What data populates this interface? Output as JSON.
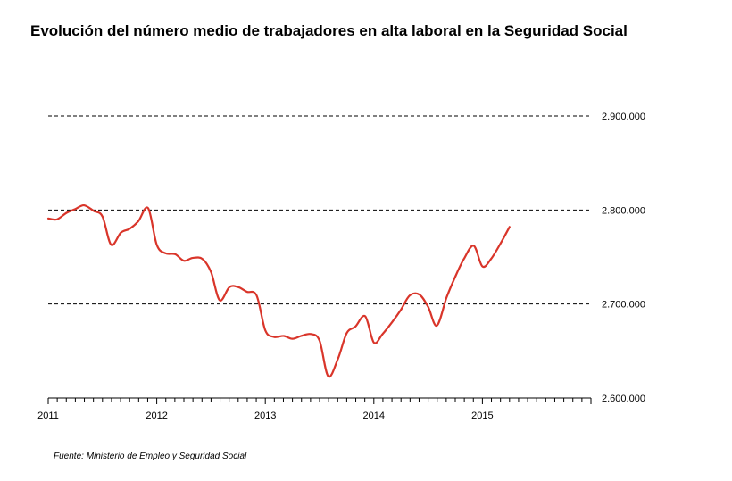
{
  "chart_data": {
    "type": "line",
    "title": "Evolución del número medio de trabajadores en alta laboral en la Seguridad Social",
    "source": "Fuente: Ministerio de Empleo y Seguridad Social",
    "xlabel": "",
    "ylabel": "",
    "xlim": [
      2011.0,
      2016.0
    ],
    "ylim": [
      2600000,
      2900000
    ],
    "grid": "horizontal dashed",
    "x_ticks": [
      {
        "value": 2011,
        "label": "2011"
      },
      {
        "value": 2012,
        "label": "2012"
      },
      {
        "value": 2013,
        "label": "2013"
      },
      {
        "value": 2014,
        "label": "2014"
      },
      {
        "value": 2015,
        "label": "2015"
      }
    ],
    "y_ticks": [
      {
        "value": 2600000,
        "label": "2.600.000"
      },
      {
        "value": 2700000,
        "label": "2.700.000"
      },
      {
        "value": 2800000,
        "label": "2.800.000"
      },
      {
        "value": 2900000,
        "label": "2.900.000"
      }
    ],
    "series": [
      {
        "color": "#d9352a",
        "points": [
          [
            2011.0,
            2791000
          ],
          [
            2011.08,
            2790000
          ],
          [
            2011.17,
            2797000
          ],
          [
            2011.25,
            2801000
          ],
          [
            2011.33,
            2805000
          ],
          [
            2011.42,
            2799000
          ],
          [
            2011.5,
            2793000
          ],
          [
            2011.58,
            2763000
          ],
          [
            2011.67,
            2776000
          ],
          [
            2011.75,
            2780000
          ],
          [
            2011.83,
            2788000
          ],
          [
            2011.92,
            2802000
          ],
          [
            2012.0,
            2763000
          ],
          [
            2012.08,
            2754000
          ],
          [
            2012.17,
            2753000
          ],
          [
            2012.25,
            2746000
          ],
          [
            2012.33,
            2749000
          ],
          [
            2012.42,
            2748000
          ],
          [
            2012.5,
            2734000
          ],
          [
            2012.58,
            2704000
          ],
          [
            2012.67,
            2718000
          ],
          [
            2012.75,
            2718000
          ],
          [
            2012.83,
            2713000
          ],
          [
            2012.92,
            2709000
          ],
          [
            2013.0,
            2672000
          ],
          [
            2013.08,
            2665000
          ],
          [
            2013.17,
            2666000
          ],
          [
            2013.25,
            2663000
          ],
          [
            2013.33,
            2666000
          ],
          [
            2013.42,
            2668000
          ],
          [
            2013.5,
            2661000
          ],
          [
            2013.58,
            2623000
          ],
          [
            2013.67,
            2642000
          ],
          [
            2013.75,
            2669000
          ],
          [
            2013.83,
            2676000
          ],
          [
            2013.92,
            2687000
          ],
          [
            2014.0,
            2659000
          ],
          [
            2014.08,
            2668000
          ],
          [
            2014.17,
            2681000
          ],
          [
            2014.25,
            2694000
          ],
          [
            2014.33,
            2709000
          ],
          [
            2014.42,
            2710000
          ],
          [
            2014.5,
            2697000
          ],
          [
            2014.58,
            2677000
          ],
          [
            2014.67,
            2707000
          ],
          [
            2014.75,
            2729000
          ],
          [
            2014.83,
            2748000
          ],
          [
            2014.92,
            2762000
          ],
          [
            2015.0,
            2740000
          ],
          [
            2015.08,
            2748000
          ],
          [
            2015.17,
            2765000
          ],
          [
            2015.25,
            2782000
          ]
        ]
      }
    ]
  }
}
